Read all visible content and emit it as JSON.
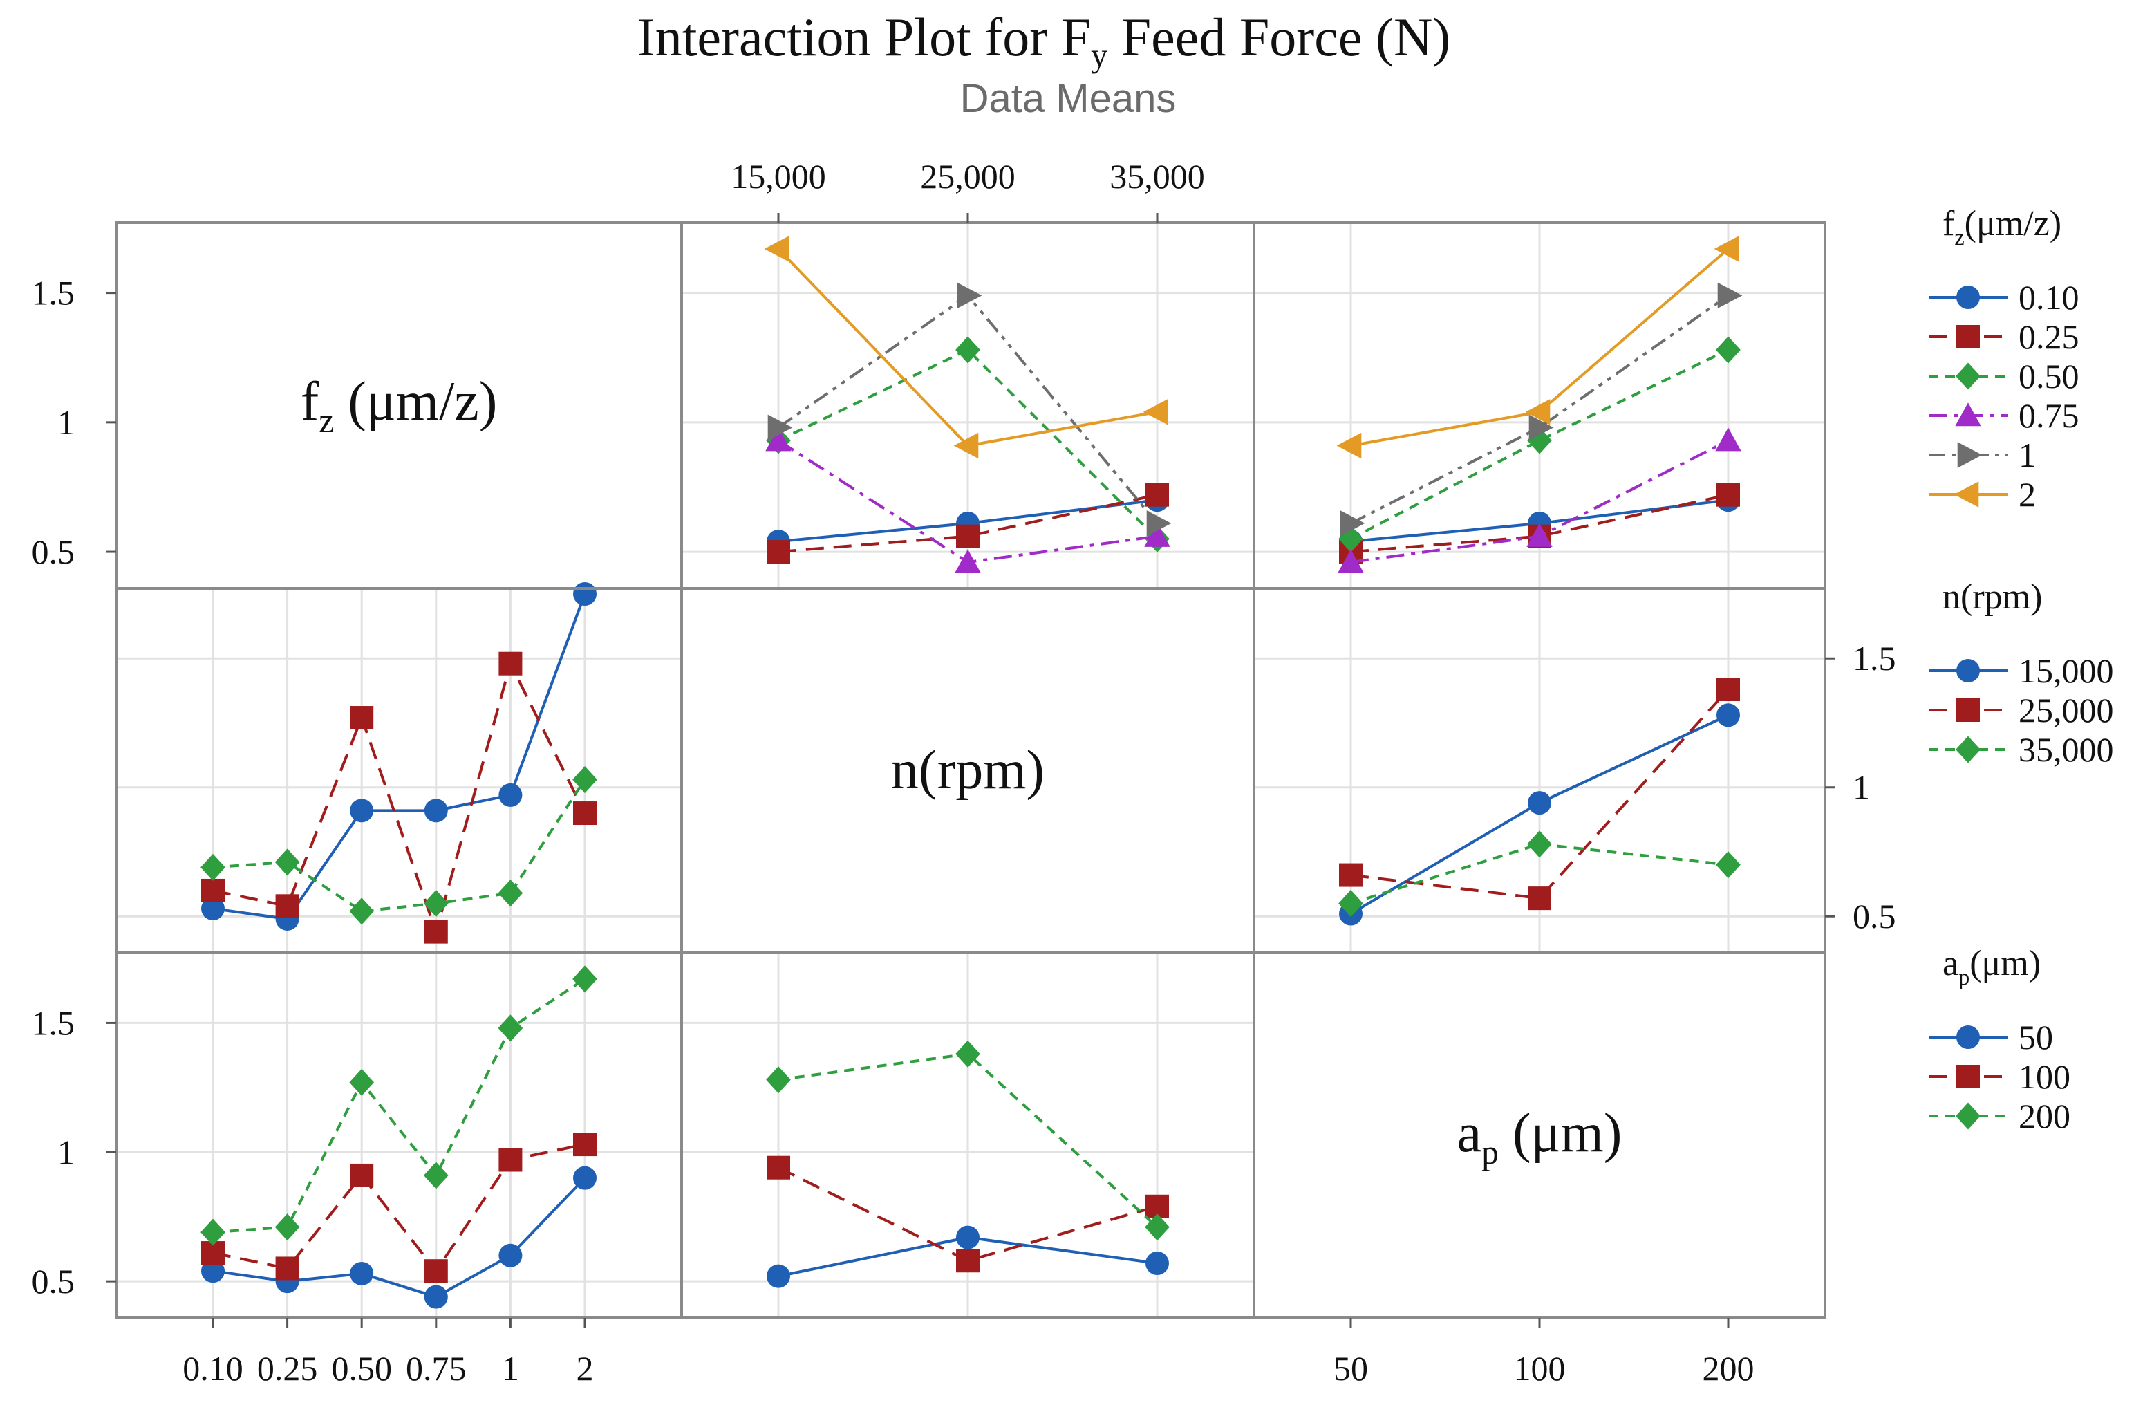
{
  "chart_data": {
    "type": "line",
    "title": "Interaction Plot for Fy Feed Force (N)",
    "title_parts": {
      "main": "Interaction Plot for F",
      "sub": "y",
      "tail": " Feed Force (N)"
    },
    "subtitle": "Data Means",
    "ylim": [
      0.38,
      1.75
    ],
    "y_ticks": [
      {
        "value": 0.5,
        "label": "0.5"
      },
      {
        "value": 1.0,
        "label": "1"
      },
      {
        "value": 1.5,
        "label": "1.5"
      }
    ],
    "factors": [
      {
        "name": "fz",
        "diag_label": {
          "main": "f",
          "sub": "z",
          "tail": " (μm/z)"
        },
        "legend_title": {
          "main": "f",
          "sub": "z",
          "tail": "(μm/z)"
        },
        "levels": [
          "0.10",
          "0.25",
          "0.50",
          "0.75",
          "1",
          "2"
        ],
        "tick_labels": [
          "0.10",
          "0.25",
          "0.50",
          "0.75",
          "1",
          "2"
        ],
        "series_styles": [
          {
            "color": "#1f5fb4",
            "marker": "circle",
            "dash": "solid"
          },
          {
            "color": "#a11d1d",
            "marker": "square",
            "dash": "longdash"
          },
          {
            "color": "#2e9e3e",
            "marker": "diamond",
            "dash": "shortdash"
          },
          {
            "color": "#a02bc8",
            "marker": "triangle-up",
            "dash": "dashdot"
          },
          {
            "color": "#6e6e6e",
            "marker": "triangle-right",
            "dash": "dashdotdot"
          },
          {
            "color": "#e39b25",
            "marker": "triangle-left",
            "dash": "solid"
          }
        ]
      },
      {
        "name": "n",
        "diag_label": {
          "main": "n(rpm)",
          "sub": "",
          "tail": ""
        },
        "legend_title": {
          "main": "n(rpm)",
          "sub": "",
          "tail": ""
        },
        "levels": [
          "15,000",
          "25,000",
          "35,000"
        ],
        "tick_labels": [
          "15,000",
          "25,000",
          "35,000"
        ],
        "series_styles": [
          {
            "color": "#1f5fb4",
            "marker": "circle",
            "dash": "solid"
          },
          {
            "color": "#a11d1d",
            "marker": "square",
            "dash": "longdash"
          },
          {
            "color": "#2e9e3e",
            "marker": "diamond",
            "dash": "shortdash"
          }
        ]
      },
      {
        "name": "ap",
        "diag_label": {
          "main": "a",
          "sub": "p",
          "tail": " (μm)"
        },
        "legend_title": {
          "main": "a",
          "sub": "p",
          "tail": "(μm)"
        },
        "levels": [
          "50",
          "100",
          "200"
        ],
        "tick_labels": [
          "50",
          "100",
          "200"
        ],
        "series_styles": [
          {
            "color": "#1f5fb4",
            "marker": "circle",
            "dash": "solid"
          },
          {
            "color": "#a11d1d",
            "marker": "square",
            "dash": "longdash"
          },
          {
            "color": "#2e9e3e",
            "marker": "diamond",
            "dash": "shortdash"
          }
        ]
      }
    ],
    "panels": [
      {
        "row": 0,
        "col": 1,
        "x_factor": "n",
        "trace_factor": "fz",
        "series": [
          {
            "name": "0.10",
            "values": [
              0.54,
              0.61,
              0.7
            ]
          },
          {
            "name": "0.25",
            "values": [
              0.5,
              0.56,
              0.72
            ]
          },
          {
            "name": "0.50",
            "values": [
              0.93,
              1.28,
              0.55
            ]
          },
          {
            "name": "0.75",
            "values": [
              0.93,
              0.46,
              0.56
            ]
          },
          {
            "name": "1",
            "values": [
              0.98,
              1.49,
              0.61
            ]
          },
          {
            "name": "2",
            "values": [
              1.67,
              0.91,
              1.04
            ]
          }
        ]
      },
      {
        "row": 0,
        "col": 2,
        "x_factor": "ap",
        "trace_factor": "fz",
        "series": [
          {
            "name": "0.10",
            "values": [
              0.54,
              0.61,
              0.7
            ]
          },
          {
            "name": "0.25",
            "values": [
              0.5,
              0.56,
              0.72
            ]
          },
          {
            "name": "0.50",
            "values": [
              0.55,
              0.93,
              1.28
            ]
          },
          {
            "name": "0.75",
            "values": [
              0.46,
              0.56,
              0.93
            ]
          },
          {
            "name": "1",
            "values": [
              0.61,
              0.98,
              1.49
            ]
          },
          {
            "name": "2",
            "values": [
              0.91,
              1.04,
              1.67
            ]
          }
        ]
      },
      {
        "row": 1,
        "col": 0,
        "x_factor": "fz",
        "trace_factor": "n",
        "series": [
          {
            "name": "15,000",
            "values": [
              0.53,
              0.49,
              0.91,
              0.91,
              0.97,
              1.75
            ]
          },
          {
            "name": "25,000",
            "values": [
              0.6,
              0.54,
              1.27,
              0.44,
              1.48,
              0.9
            ]
          },
          {
            "name": "35,000",
            "values": [
              0.69,
              0.71,
              0.52,
              0.55,
              0.59,
              1.03
            ]
          }
        ]
      },
      {
        "row": 1,
        "col": 2,
        "x_factor": "ap",
        "trace_factor": "n",
        "series": [
          {
            "name": "15,000",
            "values": [
              0.51,
              0.94,
              1.28
            ]
          },
          {
            "name": "25,000",
            "values": [
              0.66,
              0.57,
              1.38
            ]
          },
          {
            "name": "35,000",
            "values": [
              0.55,
              0.78,
              0.7
            ]
          }
        ]
      },
      {
        "row": 2,
        "col": 0,
        "x_factor": "fz",
        "trace_factor": "ap",
        "series": [
          {
            "name": "50",
            "values": [
              0.54,
              0.5,
              0.53,
              0.44,
              0.6,
              0.9
            ]
          },
          {
            "name": "100",
            "values": [
              0.61,
              0.55,
              0.91,
              0.54,
              0.97,
              1.03
            ]
          },
          {
            "name": "200",
            "values": [
              0.69,
              0.71,
              1.27,
              0.91,
              1.48,
              1.67
            ]
          }
        ]
      },
      {
        "row": 2,
        "col": 1,
        "x_factor": "n",
        "trace_factor": "ap",
        "series": [
          {
            "name": "50",
            "values": [
              0.52,
              0.67,
              0.57
            ]
          },
          {
            "name": "100",
            "values": [
              0.94,
              0.58,
              0.79
            ]
          },
          {
            "name": "200",
            "values": [
              1.28,
              1.38,
              0.71
            ]
          }
        ]
      }
    ]
  }
}
